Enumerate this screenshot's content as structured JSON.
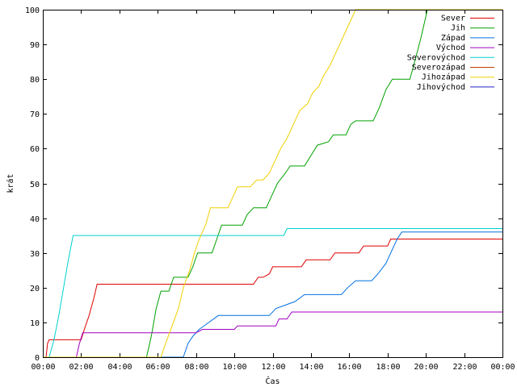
{
  "chart_data": {
    "type": "line",
    "title": "",
    "xlabel": "Čas",
    "ylabel": "krát",
    "xlim": [
      "00:00",
      "00:00"
    ],
    "ylim": [
      0,
      100
    ],
    "x_ticks": [
      "00:00",
      "02:00",
      "04:00",
      "06:00",
      "08:00",
      "10:00",
      "12:00",
      "14:00",
      "16:00",
      "18:00",
      "20:00",
      "22:00",
      "00:00"
    ],
    "y_ticks": [
      0,
      10,
      20,
      30,
      40,
      50,
      60,
      70,
      80,
      90,
      100
    ],
    "grid": false,
    "legend_position": "top-right",
    "step": true,
    "series": [
      {
        "name": "Sever",
        "color": "#e00000",
        "points": [
          [
            "00:00",
            0
          ],
          [
            "00:10",
            0
          ],
          [
            "00:15",
            4
          ],
          [
            "00:20",
            5
          ],
          [
            "02:00",
            5
          ],
          [
            "02:10",
            8
          ],
          [
            "02:25",
            12
          ],
          [
            "02:40",
            17
          ],
          [
            "02:50",
            21
          ],
          [
            "11:00",
            21
          ],
          [
            "11:15",
            23
          ],
          [
            "11:30",
            23
          ],
          [
            "11:50",
            24
          ],
          [
            "12:00",
            26
          ],
          [
            "13:30",
            26
          ],
          [
            "13:45",
            28
          ],
          [
            "15:00",
            28
          ],
          [
            "15:15",
            30
          ],
          [
            "16:30",
            30
          ],
          [
            "16:45",
            32
          ],
          [
            "18:00",
            32
          ],
          [
            "18:10",
            34
          ],
          [
            "24:00",
            34
          ]
        ]
      },
      {
        "name": "Jih",
        "color": "#00a000",
        "points": [
          [
            "00:00",
            0
          ],
          [
            "05:25",
            0
          ],
          [
            "05:40",
            6
          ],
          [
            "05:55",
            14
          ],
          [
            "06:10",
            19
          ],
          [
            "06:35",
            19
          ],
          [
            "06:50",
            23
          ],
          [
            "07:35",
            23
          ],
          [
            "07:50",
            26
          ],
          [
            "08:05",
            30
          ],
          [
            "08:50",
            30
          ],
          [
            "09:05",
            34
          ],
          [
            "09:20",
            38
          ],
          [
            "10:25",
            38
          ],
          [
            "10:40",
            41
          ],
          [
            "11:00",
            43
          ],
          [
            "11:40",
            43
          ],
          [
            "11:55",
            46
          ],
          [
            "12:15",
            50
          ],
          [
            "12:40",
            53
          ],
          [
            "12:55",
            55
          ],
          [
            "13:40",
            55
          ],
          [
            "14:00",
            58
          ],
          [
            "14:20",
            61
          ],
          [
            "14:55",
            62
          ],
          [
            "15:10",
            64
          ],
          [
            "15:50",
            64
          ],
          [
            "16:05",
            67
          ],
          [
            "16:20",
            68
          ],
          [
            "17:15",
            68
          ],
          [
            "17:35",
            72
          ],
          [
            "17:55",
            77
          ],
          [
            "18:15",
            80
          ],
          [
            "19:10",
            80
          ],
          [
            "19:25",
            85
          ],
          [
            "19:45",
            92
          ],
          [
            "20:05",
            100
          ],
          [
            "24:00",
            100
          ]
        ]
      },
      {
        "name": "Západ",
        "color": "#0070e0",
        "points": [
          [
            "00:00",
            0
          ],
          [
            "07:20",
            0
          ],
          [
            "07:35",
            4
          ],
          [
            "07:50",
            6
          ],
          [
            "08:10",
            8
          ],
          [
            "08:40",
            10
          ],
          [
            "09:10",
            12
          ],
          [
            "11:50",
            12
          ],
          [
            "12:10",
            14
          ],
          [
            "12:40",
            15
          ],
          [
            "13:10",
            16
          ],
          [
            "13:40",
            18
          ],
          [
            "15:35",
            18
          ],
          [
            "15:55",
            20
          ],
          [
            "16:20",
            22
          ],
          [
            "17:10",
            22
          ],
          [
            "17:30",
            24
          ],
          [
            "17:55",
            27
          ],
          [
            "18:10",
            30
          ],
          [
            "18:30",
            34
          ],
          [
            "18:45",
            36
          ],
          [
            "24:00",
            36
          ]
        ]
      },
      {
        "name": "Východ",
        "color": "#a000c0",
        "points": [
          [
            "00:00",
            0
          ],
          [
            "01:45",
            0
          ],
          [
            "01:55",
            4
          ],
          [
            "02:05",
            7
          ],
          [
            "08:00",
            7
          ],
          [
            "08:20",
            8
          ],
          [
            "10:00",
            8
          ],
          [
            "10:10",
            9
          ],
          [
            "12:10",
            9
          ],
          [
            "12:20",
            11
          ],
          [
            "12:45",
            11
          ],
          [
            "13:00",
            13
          ],
          [
            "24:00",
            13
          ]
        ]
      },
      {
        "name": "Severovýchod",
        "color": "#00d0d0",
        "points": [
          [
            "00:00",
            0
          ],
          [
            "00:20",
            0
          ],
          [
            "00:35",
            5
          ],
          [
            "00:50",
            12
          ],
          [
            "01:05",
            20
          ],
          [
            "01:20",
            28
          ],
          [
            "01:35",
            35
          ],
          [
            "12:35",
            35
          ],
          [
            "12:45",
            37
          ],
          [
            "24:00",
            37
          ]
        ]
      },
      {
        "name": "Severozápad",
        "color": "#c04000",
        "points": []
      },
      {
        "name": "Jihozápad",
        "color": "#f0d000",
        "points": [
          [
            "00:00",
            0
          ],
          [
            "06:10",
            0
          ],
          [
            "06:25",
            4
          ],
          [
            "06:45",
            9
          ],
          [
            "07:05",
            14
          ],
          [
            "07:20",
            20
          ],
          [
            "07:40",
            25
          ],
          [
            "07:55",
            30
          ],
          [
            "08:10",
            34
          ],
          [
            "08:30",
            38
          ],
          [
            "08:45",
            43
          ],
          [
            "09:40",
            43
          ],
          [
            "09:55",
            46
          ],
          [
            "10:10",
            49
          ],
          [
            "10:50",
            49
          ],
          [
            "11:10",
            51
          ],
          [
            "11:30",
            51
          ],
          [
            "11:50",
            53
          ],
          [
            "12:05",
            56
          ],
          [
            "12:25",
            60
          ],
          [
            "12:45",
            63
          ],
          [
            "13:05",
            67
          ],
          [
            "13:25",
            71
          ],
          [
            "13:50",
            73
          ],
          [
            "14:05",
            76
          ],
          [
            "14:25",
            78
          ],
          [
            "14:40",
            81
          ],
          [
            "15:00",
            84
          ],
          [
            "15:20",
            88
          ],
          [
            "15:40",
            92
          ],
          [
            "16:05",
            97
          ],
          [
            "16:20",
            100
          ],
          [
            "24:00",
            100
          ]
        ]
      },
      {
        "name": "Jihovýchod",
        "color": "#2020c0",
        "points": []
      }
    ]
  }
}
